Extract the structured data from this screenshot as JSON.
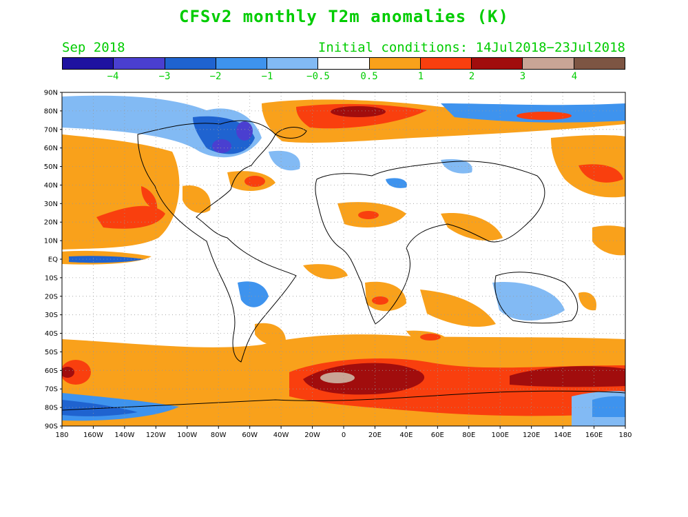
{
  "title": "CFSv2 monthly T2m anomalies (K)",
  "month": "Sep 2018",
  "initial_conditions": "Initial conditions: 14Jul2018−23Jul2018",
  "colorbar": {
    "colors": [
      "#1e12a0",
      "#4a3fd0",
      "#1f63d0",
      "#3e93ee",
      "#82baf4",
      "#ffffff",
      "#f9a11b",
      "#f93f0e",
      "#a10d0d",
      "#c9a596",
      "#7d5543"
    ],
    "labels": [
      "−4",
      "−3",
      "−2",
      "−1",
      "−0.5",
      "0.5",
      "1",
      "2",
      "3",
      "4"
    ]
  },
  "map": {
    "lat_labels": [
      "90N",
      "80N",
      "70N",
      "60N",
      "50N",
      "40N",
      "30N",
      "20N",
      "10N",
      "EQ",
      "10S",
      "20S",
      "30S",
      "40S",
      "50S",
      "60S",
      "70S",
      "80S",
      "90S"
    ],
    "lon_labels": [
      "180",
      "160W",
      "140W",
      "120W",
      "100W",
      "80W",
      "60W",
      "40W",
      "20W",
      "0",
      "20E",
      "40E",
      "60E",
      "80E",
      "100E",
      "120E",
      "140E",
      "160E",
      "180"
    ]
  }
}
